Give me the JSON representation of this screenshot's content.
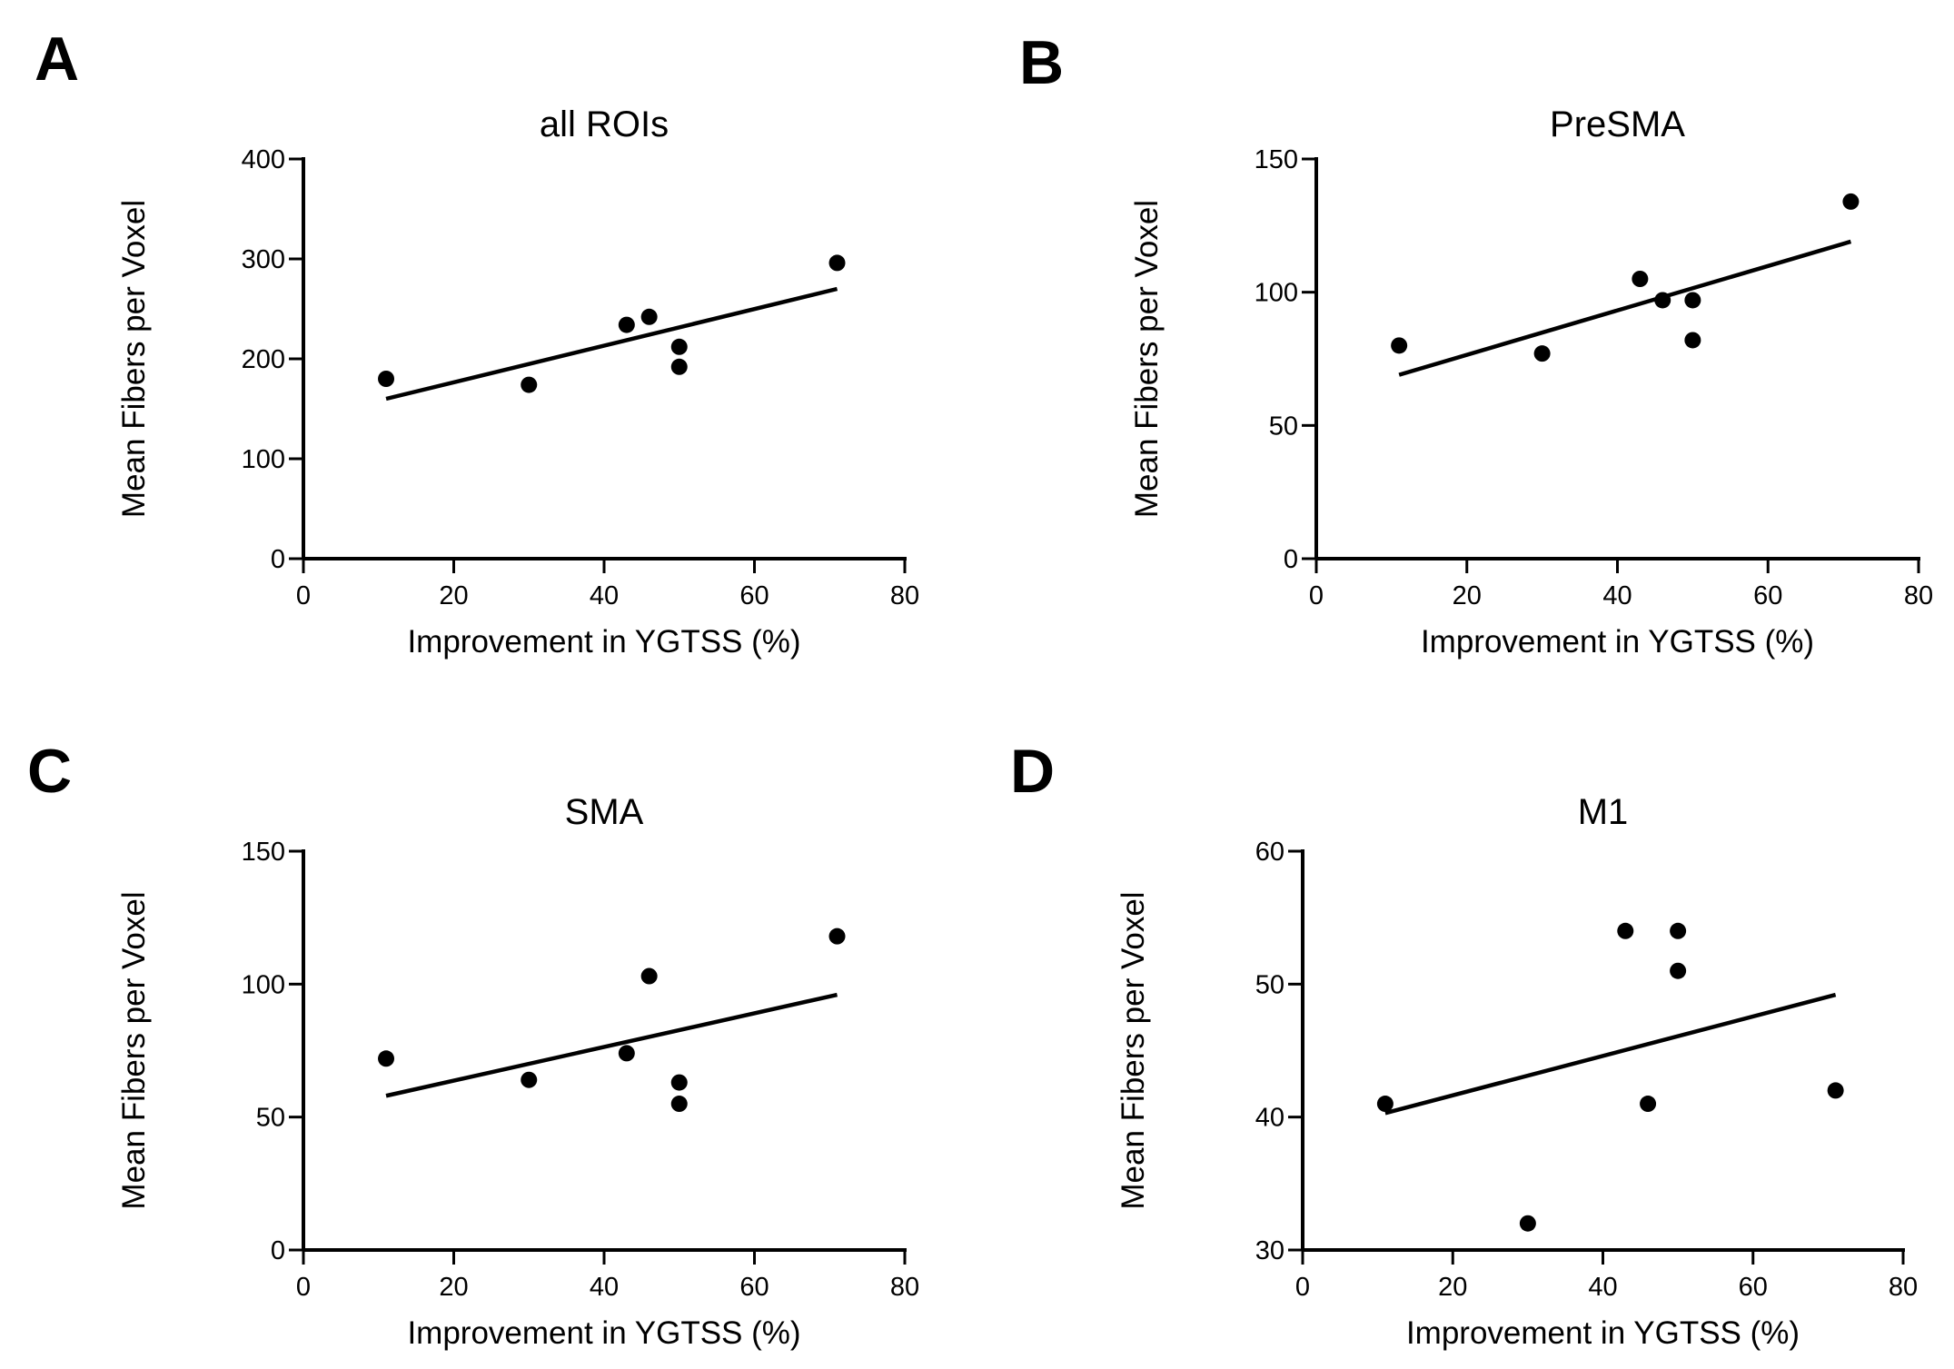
{
  "chart_data": [
    {
      "panel": "A",
      "type": "scatter",
      "title": "all ROIs",
      "xlabel": "Improvement in YGTSS (%)",
      "ylabel": "Mean Fibers per Voxel",
      "xlim": [
        0,
        80
      ],
      "ylim": [
        0,
        400
      ],
      "xticks": [
        0,
        20,
        40,
        60,
        80
      ],
      "yticks": [
        0,
        100,
        200,
        300,
        400
      ],
      "x": [
        11,
        30,
        43,
        46,
        50,
        50,
        71
      ],
      "y": [
        180,
        174,
        234,
        242,
        212,
        192,
        296
      ],
      "fit_line": {
        "x": [
          11,
          71
        ],
        "y": [
          160,
          270
        ]
      },
      "grid": false
    },
    {
      "panel": "B",
      "type": "scatter",
      "title": "PreSMA",
      "xlabel": "Improvement in YGTSS (%)",
      "ylabel": "Mean Fibers per Voxel",
      "xlim": [
        0,
        80
      ],
      "ylim": [
        0,
        150
      ],
      "xticks": [
        0,
        20,
        40,
        60,
        80
      ],
      "yticks": [
        0,
        50,
        100,
        150
      ],
      "x": [
        11,
        30,
        43,
        46,
        50,
        50,
        71
      ],
      "y": [
        80,
        77,
        105,
        97,
        97,
        82,
        134
      ],
      "fit_line": {
        "x": [
          11,
          71
        ],
        "y": [
          69,
          119
        ]
      },
      "grid": false
    },
    {
      "panel": "C",
      "type": "scatter",
      "title": "SMA",
      "xlabel": "Improvement in YGTSS (%)",
      "ylabel": "Mean Fibers per Voxel",
      "xlim": [
        0,
        80
      ],
      "ylim": [
        0,
        150
      ],
      "xticks": [
        0,
        20,
        40,
        60,
        80
      ],
      "yticks": [
        0,
        50,
        100,
        150
      ],
      "x": [
        11,
        30,
        43,
        46,
        50,
        50,
        71
      ],
      "y": [
        72,
        64,
        74,
        103,
        63,
        55,
        118
      ],
      "fit_line": {
        "x": [
          11,
          71
        ],
        "y": [
          58,
          96
        ]
      },
      "grid": false
    },
    {
      "panel": "D",
      "type": "scatter",
      "title": "M1",
      "xlabel": "Improvement in YGTSS (%)",
      "ylabel": "Mean Fibers per Voxel",
      "xlim": [
        0,
        80
      ],
      "ylim": [
        30,
        60
      ],
      "xticks": [
        0,
        20,
        40,
        60,
        80
      ],
      "yticks": [
        30,
        40,
        50,
        60
      ],
      "x": [
        11,
        30,
        43,
        46,
        50,
        50,
        71
      ],
      "y": [
        41,
        32,
        54,
        41,
        54,
        51,
        42
      ],
      "fit_line": {
        "x": [
          11,
          71
        ],
        "y": [
          40.3,
          49.2
        ]
      },
      "grid": false
    }
  ]
}
